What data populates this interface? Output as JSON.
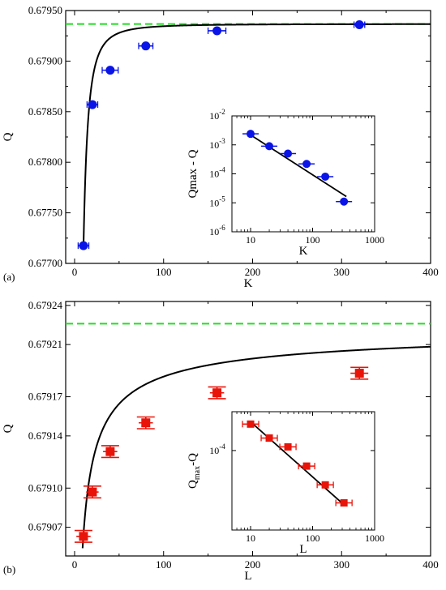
{
  "chart_data": [
    {
      "type": "scatter",
      "panel_label": "(a)",
      "xlabel": "K",
      "ylabel": "Q",
      "xlim": [
        -10,
        400
      ],
      "ylim": [
        0.677,
        0.6795
      ],
      "xticks": [
        "0",
        "100",
        "200",
        "300",
        "400"
      ],
      "yticks": [
        "0.67700",
        "0.67750",
        "0.67800",
        "0.67850",
        "0.67900",
        "0.67950"
      ],
      "reference_line": {
        "y": 0.679367,
        "style": "dashed",
        "color": "#22dd22"
      },
      "fit_curve": {
        "form": "Qmax - A*K^-2",
        "Qmax": 0.679367,
        "A": 0.2205,
        "color": "#000000"
      },
      "points": [
        {
          "x": 10,
          "y": 0.677175,
          "xerr": 4
        },
        {
          "x": 20,
          "y": 0.67857,
          "xerr": 6
        },
        {
          "x": 40,
          "y": 0.67891,
          "xerr": 9
        },
        {
          "x": 80,
          "y": 0.67915,
          "xerr": 8
        },
        {
          "x": 160,
          "y": 0.6793,
          "xerr": 10
        },
        {
          "x": 320,
          "y": 0.67936,
          "xerr": 5
        }
      ],
      "marker": {
        "shape": "circle",
        "color": "#0a14e6"
      },
      "inset": {
        "xlabel": "K",
        "ylabel": "Qmax - Q",
        "xscale": "log",
        "yscale": "log",
        "xlim": [
          5,
          1000
        ],
        "ylim": [
          1e-06,
          0.01
        ],
        "xticks": [
          "10",
          "100",
          "1000"
        ],
        "yticks": [
          {
            "base": "10",
            "exp": "-6"
          },
          {
            "base": "10",
            "exp": "-5"
          },
          {
            "base": "10",
            "exp": "-4"
          },
          {
            "base": "10",
            "exp": "-3"
          },
          {
            "base": "10",
            "exp": "-2"
          }
        ],
        "points": [
          {
            "x": 10,
            "y": 0.0024
          },
          {
            "x": 20,
            "y": 0.0009
          },
          {
            "x": 40,
            "y": 0.0005
          },
          {
            "x": 80,
            "y": 0.00022
          },
          {
            "x": 160,
            "y": 8e-05
          },
          {
            "x": 320,
            "y": 1.1e-05
          }
        ],
        "fit_line": {
          "x": [
            10,
            350
          ],
          "y": [
            0.0022,
            1.65e-05
          ]
        }
      }
    },
    {
      "type": "scatter",
      "panel_label": "(b)",
      "xlabel": "L",
      "ylabel": "Q",
      "xlim": [
        -10,
        400
      ],
      "ylim": [
        0.679048,
        0.679243
      ],
      "xticks": [
        "0",
        "100",
        "200",
        "300",
        "400"
      ],
      "yticks": [
        "0.67907",
        "0.67910",
        "0.67914",
        "0.67917",
        "0.67921",
        "0.67924"
      ],
      "ytick_values": [
        0.67907,
        0.6791,
        0.67914,
        0.67917,
        0.67921,
        0.67924
      ],
      "reference_line": {
        "y": 0.679226,
        "style": "dashed",
        "color": "#22dd22"
      },
      "fit_curve": {
        "form": "Qmax - A*L^-0.6",
        "Qmax": 0.679226,
        "A": 0.000643,
        "color": "#000000"
      },
      "points": [
        {
          "x": 10,
          "y": 0.679063,
          "xerr": 8,
          "yerr": 4.5e-06
        },
        {
          "x": 20,
          "y": 0.679097,
          "xerr": 7,
          "yerr": 4.5e-06
        },
        {
          "x": 40,
          "y": 0.679128,
          "xerr": 8,
          "yerr": 4.5e-06
        },
        {
          "x": 80,
          "y": 0.67915,
          "xerr": 8,
          "yerr": 4.5e-06
        },
        {
          "x": 160,
          "y": 0.679173,
          "xerr": 8,
          "yerr": 4.5e-06
        },
        {
          "x": 320,
          "y": 0.679188,
          "xerr": 10,
          "yerr": 4.5e-06
        }
      ],
      "marker": {
        "shape": "square",
        "color": "#e8140a"
      },
      "inset": {
        "xlabel": "L",
        "ylabel_main": "Q",
        "ylabel_sub": "max",
        "ylabel_tail": "-Q",
        "xscale": "log",
        "yscale": "log",
        "xlim": [
          5,
          1000
        ],
        "ylim": [
          2.3e-05,
          0.000205
        ],
        "xticks": [
          "10",
          "100",
          "1000"
        ],
        "yticks": [
          {
            "base": "10",
            "exp": "-4",
            "value": 0.0001
          }
        ],
        "points": [
          {
            "x": 10,
            "y": 0.000163
          },
          {
            "x": 20,
            "y": 0.000126
          },
          {
            "x": 40,
            "y": 0.000107
          },
          {
            "x": 80,
            "y": 7.5e-05
          },
          {
            "x": 160,
            "y": 5.3e-05
          },
          {
            "x": 320,
            "y": 3.8e-05
          }
        ],
        "fit_line": {
          "x": [
            10,
            320
          ],
          "y": [
            0.00017,
            3.67e-05
          ]
        }
      }
    }
  ]
}
